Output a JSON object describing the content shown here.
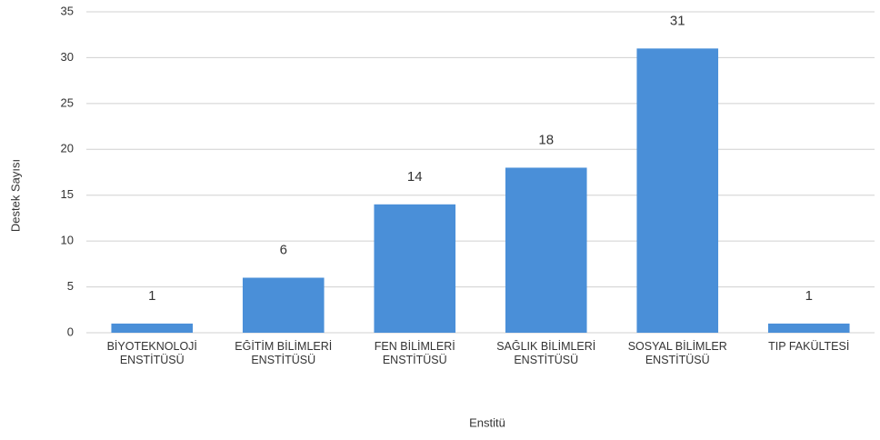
{
  "chart_data": {
    "type": "bar",
    "x_label": "Enstitü",
    "y_label": "Destek Sayısı",
    "categories": [
      "BİYOTEKNOLOJİ ENSTİTÜSÜ",
      "EĞİTİM BİLİMLERİ ENSTİTÜSÜ",
      "FEN BİLİMLERİ ENSTİTÜSÜ",
      "SAĞLIK BİLİMLERİ ENSTİTÜSÜ",
      "SOSYAL BİLİMLER ENSTİTÜSÜ",
      "TIP FAKÜLTESİ"
    ],
    "values": [
      1,
      6,
      14,
      18,
      31,
      1
    ],
    "color": "#4a8fd8",
    "ylim": [
      0,
      35
    ],
    "yticks": [
      0,
      5,
      10,
      15,
      20,
      25,
      30,
      35
    ],
    "grid": true
  }
}
